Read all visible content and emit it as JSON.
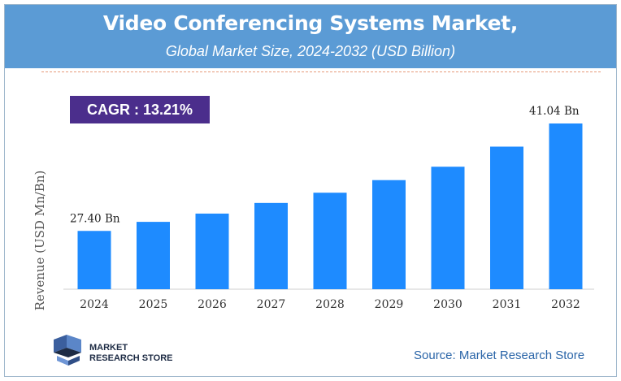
{
  "header": {
    "title": "Video Conferencing Systems Market,",
    "subtitle": "Global Market Size, 2024-2032 (USD Billion)"
  },
  "cagr_label": "CAGR : 13.21%",
  "source": "Source: Market Research Store",
  "logo": {
    "line1": "MARKET",
    "line2": "RESEARCH STORE"
  },
  "colors": {
    "header": "#5b9bd5",
    "bar": "#1e8bff",
    "cagr_box": "#4b2e8c",
    "source_text": "#2a65a8"
  },
  "chart_data": {
    "type": "bar",
    "categories": [
      "2024",
      "2025",
      "2026",
      "2027",
      "2028",
      "2029",
      "2030",
      "2031",
      "2032"
    ],
    "values": [
      27.4,
      28.55,
      29.6,
      30.95,
      32.25,
      33.85,
      35.55,
      38.1,
      41.04
    ],
    "data_labels": {
      "0": "27.40 Bn",
      "8": "41.04 Bn"
    },
    "ylabel": "Revenue (USD Mn/Bn)",
    "ylim": [
      0,
      42.5
    ],
    "grid": false,
    "legend": "none"
  }
}
